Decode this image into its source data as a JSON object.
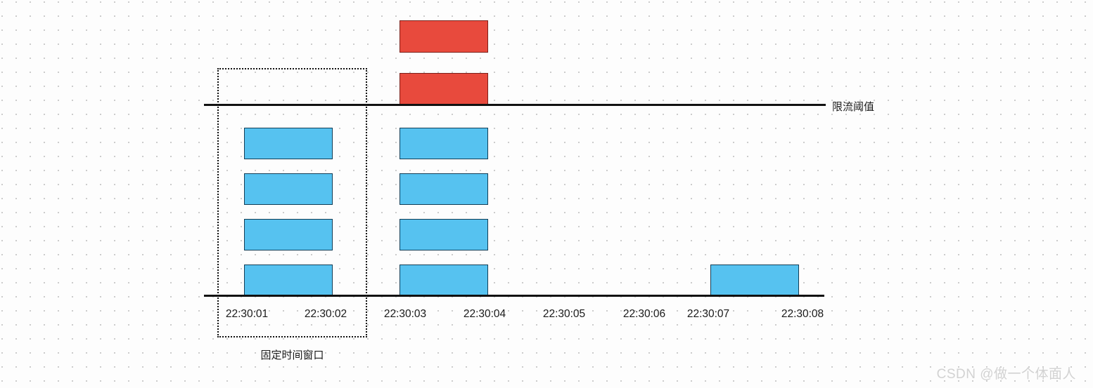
{
  "diagram": {
    "title_semantic": "fixed-time-window-rate-limiting",
    "threshold_label": "限流阈值",
    "window_label": "固定时间窗口",
    "watermark": "CSDN @做一个体面人",
    "time_labels": [
      "22:30:01",
      "22:30:02",
      "22:30:03",
      "22:30:04",
      "22:30:05",
      "22:30:06",
      "22:30:07",
      "22:30:08"
    ],
    "stacks": [
      {
        "name": "requests-window-22:30:01-22:30:02",
        "allowed": 4,
        "rejected": 0
      },
      {
        "name": "requests-window-22:30:03-22:30:04",
        "allowed": 4,
        "rejected": 2
      },
      {
        "name": "requests-window-22:30:07-22:30:08",
        "allowed": 1,
        "rejected": 0
      }
    ],
    "colors": {
      "allowed_fill": "#56c2f0",
      "allowed_border": "#123d56",
      "rejected_fill": "#e84a3d",
      "rejected_border": "#7c201a",
      "axis_line": "#111111",
      "text": "#1a1a1a",
      "grid_dot": "#cccccc",
      "watermark": "#d2d2d2"
    }
  }
}
